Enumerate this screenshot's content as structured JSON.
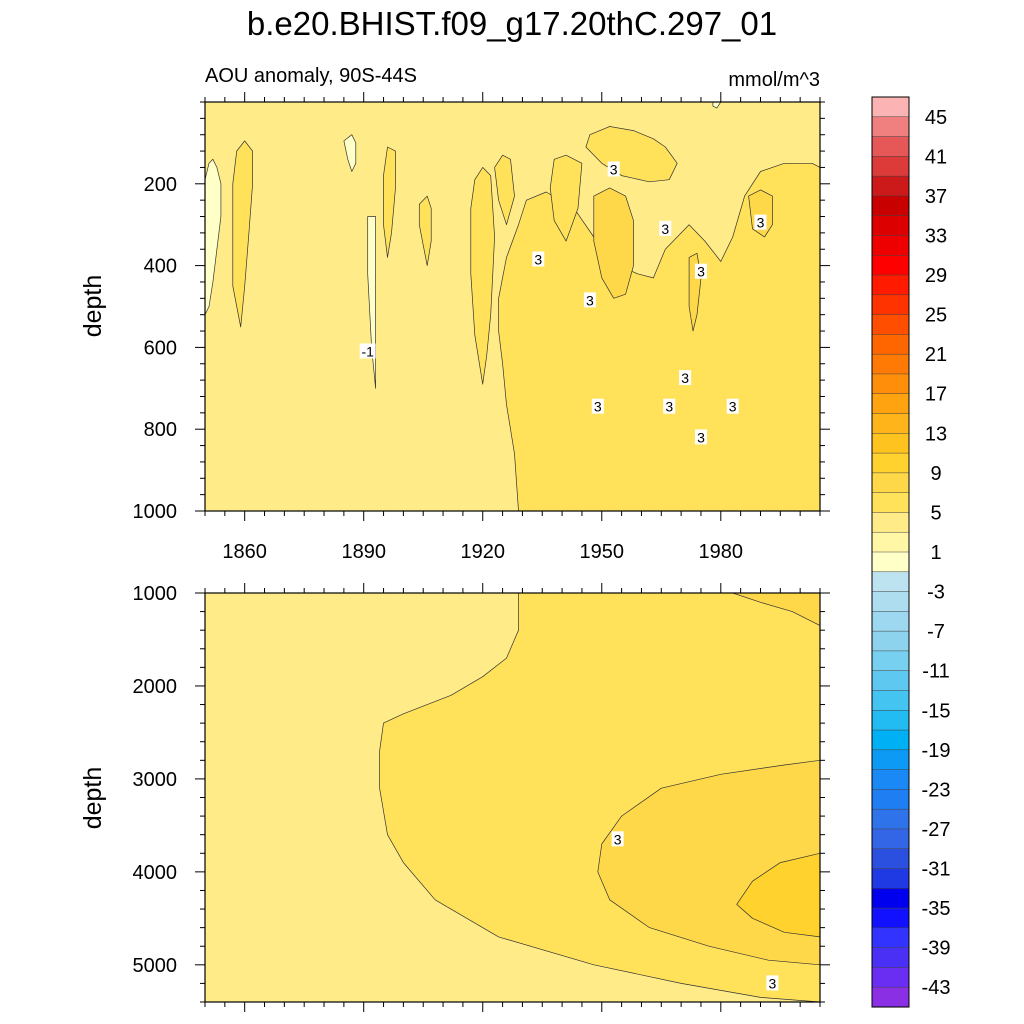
{
  "chart_data": {
    "type": "heatmap",
    "title": "b.e20.BHIST.f09_g17.20thC.297_01",
    "subtitle_left": "AOU anomaly, 90S-44S",
    "subtitle_right": "mmol/m^3",
    "colorbar": {
      "labels": [
        "45",
        "41",
        "37",
        "33",
        "29",
        "25",
        "21",
        "17",
        "13",
        "9",
        "5",
        "1",
        "-3",
        "-7",
        "-11",
        "-15",
        "-19",
        "-23",
        "-27",
        "-31",
        "-35",
        "-39",
        "-43"
      ],
      "levels": [
        -45,
        -43,
        -41,
        -39,
        -37,
        -35,
        -33,
        -31,
        -29,
        -27,
        -25,
        -23,
        -21,
        -19,
        -17,
        -15,
        -13,
        -11,
        -9,
        -7,
        -5,
        -3,
        -1,
        1,
        3,
        5,
        7,
        9,
        11,
        13,
        15,
        17,
        19,
        21,
        23,
        25,
        27,
        29,
        31,
        33,
        35,
        37,
        39,
        41,
        43,
        45
      ],
      "colors": [
        "#8b2fe5",
        "#6a2ef2",
        "#4a2ff5",
        "#3333ff",
        "#1111ff",
        "#0000ee",
        "#1f3ae3",
        "#2b50df",
        "#3366e6",
        "#2f73eb",
        "#1f7ff2",
        "#1a88f5",
        "#0d9af5",
        "#00b0f5",
        "#22bbf2",
        "#44c4f0",
        "#5fc8f0",
        "#78d0f0",
        "#8dd3ee",
        "#9dd8f0",
        "#adddef",
        "#bde3f0",
        "#ffffc8",
        "#fff7a6",
        "#ffec88",
        "#ffe15a",
        "#ffd84a",
        "#ffd22e",
        "#ffc31f",
        "#ffb41a",
        "#ffa311",
        "#ff8f0a",
        "#ff7a05",
        "#ff6600",
        "#ff4e00",
        "#ff3300",
        "#ff1a00",
        "#ff0000",
        "#ee0000",
        "#dd0000",
        "#c80000",
        "#cc1a1a",
        "#dd3a3a",
        "#e65757",
        "#f08080",
        "#fbb3b3"
      ]
    },
    "panels": [
      {
        "name": "upper",
        "xlabel": "",
        "ylabel": "depth",
        "xlim": [
          1850,
          2005
        ],
        "ylim": [
          0,
          1000
        ],
        "xticks": [
          1860,
          1890,
          1920,
          1950,
          1980
        ],
        "xtick_labels": [
          "1860",
          "1890",
          "1920",
          "1950",
          "1980"
        ],
        "yticks": [
          200,
          400,
          600,
          800,
          1000
        ],
        "ytick_labels": [
          "200",
          "400",
          "600",
          "800",
          "1000"
        ],
        "background_level": 1,
        "regions": [
          {
            "level": 3,
            "points": [
              [
                1929,
                1000
              ],
              [
                1928,
                860
              ],
              [
                1926,
                740
              ],
              [
                1925,
                640
              ],
              [
                1924,
                560
              ],
              [
                1924,
                480
              ],
              [
                1926,
                380
              ],
              [
                1929,
                300
              ],
              [
                1931,
                240
              ],
              [
                1936,
                220
              ],
              [
                1943,
                260
              ],
              [
                1948,
                330
              ],
              [
                1952,
                390
              ],
              [
                1959,
                420
              ],
              [
                1963,
                430
              ],
              [
                1966,
                360
              ],
              [
                1969,
                330
              ],
              [
                1972,
                300
              ],
              [
                1976,
                340
              ],
              [
                1980,
                390
              ],
              [
                1983,
                330
              ],
              [
                1986,
                230
              ],
              [
                1990,
                170
              ],
              [
                1996,
                150
              ],
              [
                2003,
                150
              ],
              [
                2005,
                160
              ],
              [
                2005,
                1000
              ]
            ]
          },
          {
            "level": 3,
            "points": [
              [
                1947,
                80
              ],
              [
                1952,
                60
              ],
              [
                1958,
                70
              ],
              [
                1963,
                90
              ],
              [
                1966,
                110
              ],
              [
                1969,
                150
              ],
              [
                1967,
                190
              ],
              [
                1962,
                195
              ],
              [
                1955,
                180
              ],
              [
                1950,
                150
              ],
              [
                1946,
                110
              ]
            ]
          },
          {
            "level": 3,
            "points": [
              [
                1938,
                140
              ],
              [
                1941,
                130
              ],
              [
                1945,
                150
              ],
              [
                1944,
                260
              ],
              [
                1941,
                340
              ],
              [
                1938,
                290
              ],
              [
                1937,
                210
              ]
            ]
          },
          {
            "level": 3,
            "points": [
              [
                1925,
                130
              ],
              [
                1927,
                140
              ],
              [
                1928,
                230
              ],
              [
                1926,
                300
              ],
              [
                1924,
                240
              ],
              [
                1923,
                160
              ]
            ]
          },
          {
            "level": 3,
            "points": [
              [
                1920,
                160
              ],
              [
                1922,
                180
              ],
              [
                1923,
                330
              ],
              [
                1922,
                520
              ],
              [
                1921,
                620
              ],
              [
                1920,
                690
              ],
              [
                1918,
                570
              ],
              [
                1917,
                420
              ],
              [
                1917,
                260
              ],
              [
                1918,
                190
              ]
            ]
          },
          {
            "level": 3,
            "points": [
              [
                1858,
                120
              ],
              [
                1860,
                95
              ],
              [
                1862,
                120
              ],
              [
                1862,
                200
              ],
              [
                1861,
                330
              ],
              [
                1860,
                450
              ],
              [
                1859,
                550
              ],
              [
                1857,
                450
              ],
              [
                1857,
                320
              ],
              [
                1857,
                200
              ]
            ]
          },
          {
            "level": 3,
            "points": [
              [
                1896,
                110
              ],
              [
                1898,
                120
              ],
              [
                1898,
                210
              ],
              [
                1897,
                320
              ],
              [
                1896,
                380
              ],
              [
                1895,
                300
              ],
              [
                1895,
                180
              ]
            ]
          },
          {
            "level": 3,
            "points": [
              [
                1904,
                250
              ],
              [
                1906,
                230
              ],
              [
                1907,
                260
              ],
              [
                1907,
                340
              ],
              [
                1906,
                400
              ],
              [
                1905,
                350
              ],
              [
                1904,
                300
              ]
            ]
          },
          {
            "level": 5,
            "points": [
              [
                1948,
                230
              ],
              [
                1952,
                210
              ],
              [
                1956,
                230
              ],
              [
                1958,
                290
              ],
              [
                1958,
                400
              ],
              [
                1956,
                470
              ],
              [
                1953,
                480
              ],
              [
                1950,
                430
              ],
              [
                1948,
                340
              ]
            ]
          },
          {
            "level": 5,
            "points": [
              [
                1987,
                230
              ],
              [
                1990,
                215
              ],
              [
                1993,
                230
              ],
              [
                1993,
                300
              ],
              [
                1991,
                330
              ],
              [
                1988,
                310
              ]
            ]
          },
          {
            "level": 5,
            "points": [
              [
                1972,
                380
              ],
              [
                1974,
                370
              ],
              [
                1975,
                430
              ],
              [
                1974,
                520
              ],
              [
                1973,
                560
              ],
              [
                1972,
                500
              ]
            ]
          },
          {
            "level": -3,
            "points": [
              [
                1850,
                190
              ],
              [
                1851,
                150
              ],
              [
                1852,
                140
              ],
              [
                1853,
                160
              ],
              [
                1854,
                200
              ],
              [
                1854,
                280
              ],
              [
                1853,
                360
              ],
              [
                1852,
                440
              ],
              [
                1851,
                500
              ],
              [
                1850,
                520
              ]
            ]
          },
          {
            "level": -3,
            "points": [
              [
                1891,
                280
              ],
              [
                1893,
                280
              ],
              [
                1893,
                420
              ],
              [
                1893,
                560
              ],
              [
                1893,
                700
              ],
              [
                1892,
                600
              ],
              [
                1891,
                420
              ]
            ]
          },
          {
            "level": -3,
            "points": [
              [
                1885,
                95
              ],
              [
                1887,
                80
              ],
              [
                1888,
                100
              ],
              [
                1888,
                150
              ],
              [
                1887,
                170
              ],
              [
                1886,
                140
              ]
            ]
          },
          {
            "level": -3,
            "points": [
              [
                1978,
                0
              ],
              [
                1980,
                0
              ],
              [
                1979,
                15
              ],
              [
                1978,
                10
              ]
            ]
          }
        ],
        "contour_labels": [
          {
            "x": 1953,
            "y": 165,
            "text": "3"
          },
          {
            "x": 1934,
            "y": 385,
            "text": "3"
          },
          {
            "x": 1966,
            "y": 310,
            "text": "3"
          },
          {
            "x": 1990,
            "y": 295,
            "text": "3"
          },
          {
            "x": 1975,
            "y": 415,
            "text": "3"
          },
          {
            "x": 1947,
            "y": 485,
            "text": "3"
          },
          {
            "x": 1891,
            "y": 610,
            "text": "-1"
          },
          {
            "x": 1971,
            "y": 675,
            "text": "3"
          },
          {
            "x": 1949,
            "y": 745,
            "text": "3"
          },
          {
            "x": 1967,
            "y": 745,
            "text": "3"
          },
          {
            "x": 1983,
            "y": 745,
            "text": "3"
          },
          {
            "x": 1975,
            "y": 820,
            "text": "3"
          }
        ]
      },
      {
        "name": "lower",
        "xlabel": "",
        "ylabel": "depth",
        "xlim": [
          1850,
          2005
        ],
        "ylim": [
          1000,
          5400
        ],
        "xticks": [
          1860,
          1890,
          1920,
          1950,
          1980
        ],
        "xtick_labels": [],
        "yticks": [
          1000,
          2000,
          3000,
          4000,
          5000
        ],
        "ytick_labels": [
          "1000",
          "2000",
          "3000",
          "4000",
          "5000"
        ],
        "background_level": 1,
        "regions": [
          {
            "level": 3,
            "points": [
              [
                1929,
                1000
              ],
              [
                1929,
                1400
              ],
              [
                1926,
                1700
              ],
              [
                1920,
                1900
              ],
              [
                1912,
                2100
              ],
              [
                1900,
                2300
              ],
              [
                1895,
                2400
              ],
              [
                1894,
                2700
              ],
              [
                1894,
                3100
              ],
              [
                1896,
                3600
              ],
              [
                1900,
                3900
              ],
              [
                1908,
                4300
              ],
              [
                1924,
                4700
              ],
              [
                1948,
                5000
              ],
              [
                1970,
                5200
              ],
              [
                1990,
                5350
              ],
              [
                2005,
                5400
              ],
              [
                2005,
                1000
              ]
            ]
          },
          {
            "level": 5,
            "points": [
              [
                2005,
                2800
              ],
              [
                1996,
                2850
              ],
              [
                1980,
                2950
              ],
              [
                1965,
                3100
              ],
              [
                1955,
                3400
              ],
              [
                1950,
                3700
              ],
              [
                1949,
                4000
              ],
              [
                1952,
                4300
              ],
              [
                1962,
                4600
              ],
              [
                1977,
                4800
              ],
              [
                1992,
                4950
              ],
              [
                2005,
                5000
              ]
            ]
          },
          {
            "level": 7,
            "points": [
              [
                2005,
                3800
              ],
              [
                1995,
                3900
              ],
              [
                1988,
                4100
              ],
              [
                1984,
                4350
              ],
              [
                1988,
                4500
              ],
              [
                1996,
                4650
              ],
              [
                2005,
                4700
              ]
            ]
          },
          {
            "level": 5,
            "points": [
              [
                1983,
                1000
              ],
              [
                1990,
                1100
              ],
              [
                1998,
                1200
              ],
              [
                2005,
                1350
              ],
              [
                2005,
                1000
              ]
            ]
          }
        ],
        "contour_labels": [
          {
            "x": 1954,
            "y": 3650,
            "text": "3"
          },
          {
            "x": 1993,
            "y": 5200,
            "text": "3"
          }
        ]
      }
    ]
  }
}
